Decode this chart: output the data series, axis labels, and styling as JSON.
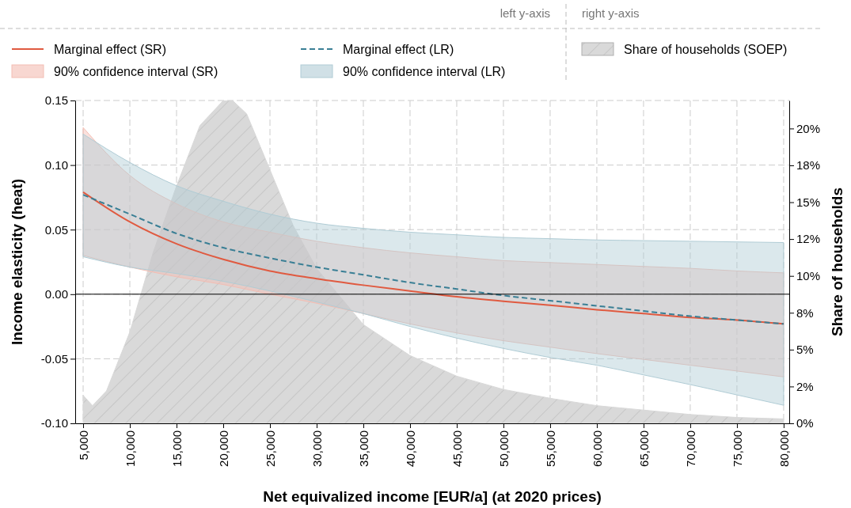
{
  "chart_data": {
    "type": "line",
    "xlabel": "Net equivalized income [EUR/a] (at 2020 prices)",
    "ylabel": "Income elasticity (heat)",
    "y2label": "Share of households",
    "xlim": [
      4150,
      80600
    ],
    "ylim": [
      -0.1,
      0.15
    ],
    "y2lim": [
      0,
      21.9
    ],
    "xticks": [
      {
        "value": 5000,
        "label": "5,000"
      },
      {
        "value": 10000,
        "label": "10,000"
      },
      {
        "value": 15000,
        "label": "15,000"
      },
      {
        "value": 20000,
        "label": "20,000"
      },
      {
        "value": 25000,
        "label": "25,000"
      },
      {
        "value": 30000,
        "label": "30,000"
      },
      {
        "value": 35000,
        "label": "35,000"
      },
      {
        "value": 40000,
        "label": "40,000"
      },
      {
        "value": 45000,
        "label": "45,000"
      },
      {
        "value": 50000,
        "label": "50,000"
      },
      {
        "value": 55000,
        "label": "55,000"
      },
      {
        "value": 60000,
        "label": "60,000"
      },
      {
        "value": 65000,
        "label": "65,000"
      },
      {
        "value": 70000,
        "label": "70,000"
      },
      {
        "value": 75000,
        "label": "75,000"
      },
      {
        "value": 80000,
        "label": "80,000"
      }
    ],
    "yticks": [
      {
        "value": -0.1,
        "label": "-0.10"
      },
      {
        "value": -0.05,
        "label": "-0.05"
      },
      {
        "value": 0,
        "label": "0.00"
      },
      {
        "value": 0.05,
        "label": "0.05"
      },
      {
        "value": 0.1,
        "label": "0.10"
      },
      {
        "value": 0.15,
        "label": "0.15"
      }
    ],
    "y2ticks": [
      {
        "value": 0,
        "label": "0%"
      },
      {
        "value": 2.5,
        "label": "2%"
      },
      {
        "value": 5,
        "label": "5%"
      },
      {
        "value": 7.5,
        "label": "8%"
      },
      {
        "value": 10,
        "label": "10%"
      },
      {
        "value": 12.5,
        "label": "12%"
      },
      {
        "value": 15,
        "label": "15%"
      },
      {
        "value": 17.5,
        "label": "18%"
      },
      {
        "value": 20,
        "label": "20%"
      }
    ],
    "grid": true,
    "legend": "top",
    "annotations": [
      "left y-axis",
      "right y-axis",
      "90% confidence interval (SR)",
      "90% confidence interval (LR)"
    ],
    "ref_lines": [
      {
        "axis": "y",
        "value": 0,
        "color": "#000000"
      }
    ],
    "series": [
      {
        "name": "Share of households (SOEP)",
        "type": "area",
        "axis": "y2",
        "color": "#d9d9d9",
        "x": [
          5000,
          6000,
          7500,
          10000,
          12500,
          15000,
          17500,
          20000,
          21000,
          22500,
          25000,
          27500,
          30000,
          35000,
          40000,
          45000,
          50000,
          55000,
          60000,
          65000,
          70000,
          75000,
          80000
        ],
        "values": [
          1.9,
          1.2,
          2.2,
          6.2,
          11.6,
          16.1,
          20.2,
          21.9,
          21.9,
          21,
          17.2,
          13.4,
          10.5,
          6.7,
          4.6,
          3.2,
          2.3,
          1.7,
          1.2,
          0.9,
          0.6,
          0.4,
          0.3
        ]
      },
      {
        "name": "Marginal effect (SR)",
        "color": "#e05a40",
        "line_style": "solid",
        "x": [
          5000,
          10000,
          15000,
          20000,
          25000,
          30000,
          35000,
          40000,
          45000,
          50000,
          55000,
          60000,
          65000,
          70000,
          75000,
          80000
        ],
        "values": [
          0.079,
          0.056,
          0.039,
          0.027,
          0.018,
          0.012,
          0.007,
          0.0025,
          -0.002,
          -0.0055,
          -0.0085,
          -0.012,
          -0.015,
          -0.018,
          -0.02,
          -0.023
        ],
        "upper": [
          0.129,
          0.092,
          0.07,
          0.056,
          0.048,
          0.041,
          0.036,
          0.032,
          0.029,
          0.026,
          0.0245,
          0.023,
          0.0215,
          0.02,
          0.018,
          0.0165
        ],
        "lower": [
          0.03,
          0.021,
          0.0135,
          0.0075,
          0,
          -0.007,
          -0.015,
          -0.023,
          -0.03,
          -0.036,
          -0.041,
          -0.046,
          -0.0505,
          -0.055,
          -0.0595,
          -0.064
        ]
      },
      {
        "name": "Marginal effect (LR)",
        "color": "#3a7f95",
        "line_style": "dashed",
        "x": [
          5000,
          10000,
          15000,
          20000,
          25000,
          30000,
          35000,
          40000,
          45000,
          50000,
          55000,
          60000,
          65000,
          70000,
          75000,
          80000
        ],
        "values": [
          0.077,
          0.062,
          0.047,
          0.036,
          0.028,
          0.021,
          0.015,
          0.009,
          0.004,
          -0.001,
          -0.005,
          -0.009,
          -0.013,
          -0.017,
          -0.02,
          -0.023
        ],
        "upper": [
          0.124,
          0.102,
          0.084,
          0.072,
          0.062,
          0.055,
          0.051,
          0.048,
          0.046,
          0.044,
          0.043,
          0.042,
          0.0415,
          0.041,
          0.0405,
          0.04
        ],
        "lower": [
          0.029,
          0.021,
          0.016,
          0.01,
          0.0025,
          -0.006,
          -0.015,
          -0.025,
          -0.034,
          -0.042,
          -0.049,
          -0.055,
          -0.0625,
          -0.07,
          -0.078,
          -0.086
        ]
      }
    ]
  }
}
